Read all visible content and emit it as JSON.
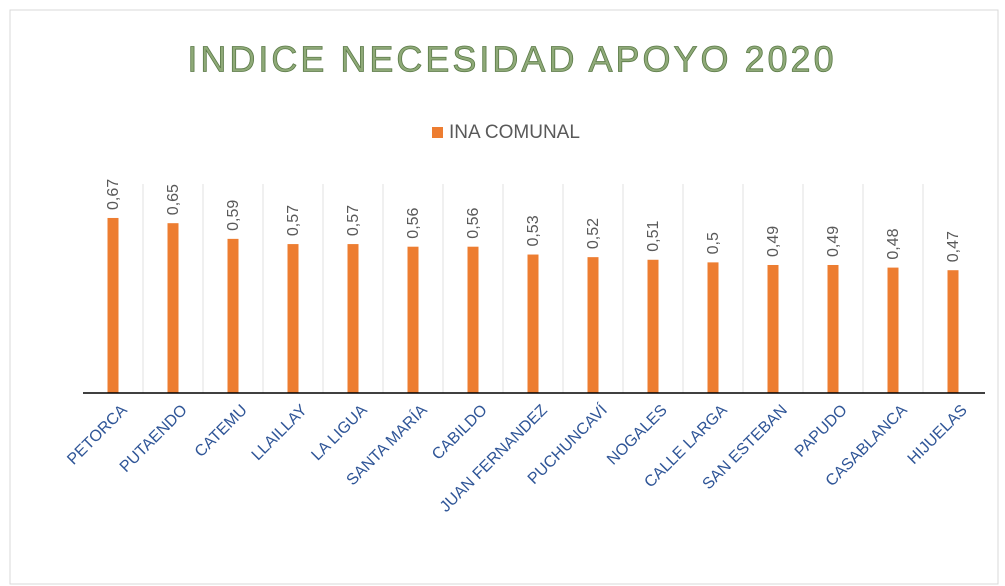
{
  "chart_data": {
    "type": "bar",
    "title": "INDICE NECESIDAD APOYO 2020",
    "categories": [
      "PETORCA",
      "PUTAENDO",
      "CATEMU",
      "LLAILLAY",
      "LA LIGUA",
      "SANTA MARÍA",
      "CABILDO",
      "JUAN FERNANDEZ",
      "PUCHUNCAVÍ",
      "NOGALES",
      "CALLE LARGA",
      "SAN ESTEBAN",
      "PAPUDO",
      "CASABLANCA",
      "HIJUELAS"
    ],
    "series": [
      {
        "name": "INA COMUNAL",
        "color": "#ed7d31",
        "values": [
          0.67,
          0.65,
          0.59,
          0.57,
          0.57,
          0.56,
          0.56,
          0.53,
          0.52,
          0.51,
          0.5,
          0.49,
          0.49,
          0.48,
          0.47
        ],
        "value_labels": [
          "0,67",
          "0,65",
          "0,59",
          "0,57",
          "0,57",
          "0,56",
          "0,56",
          "0,53",
          "0,52",
          "0,51",
          "0,5",
          "0,49",
          "0,49",
          "0,48",
          "0,47"
        ]
      }
    ],
    "ylim": [
      0,
      0.8
    ],
    "grid": true,
    "legend": "top"
  }
}
